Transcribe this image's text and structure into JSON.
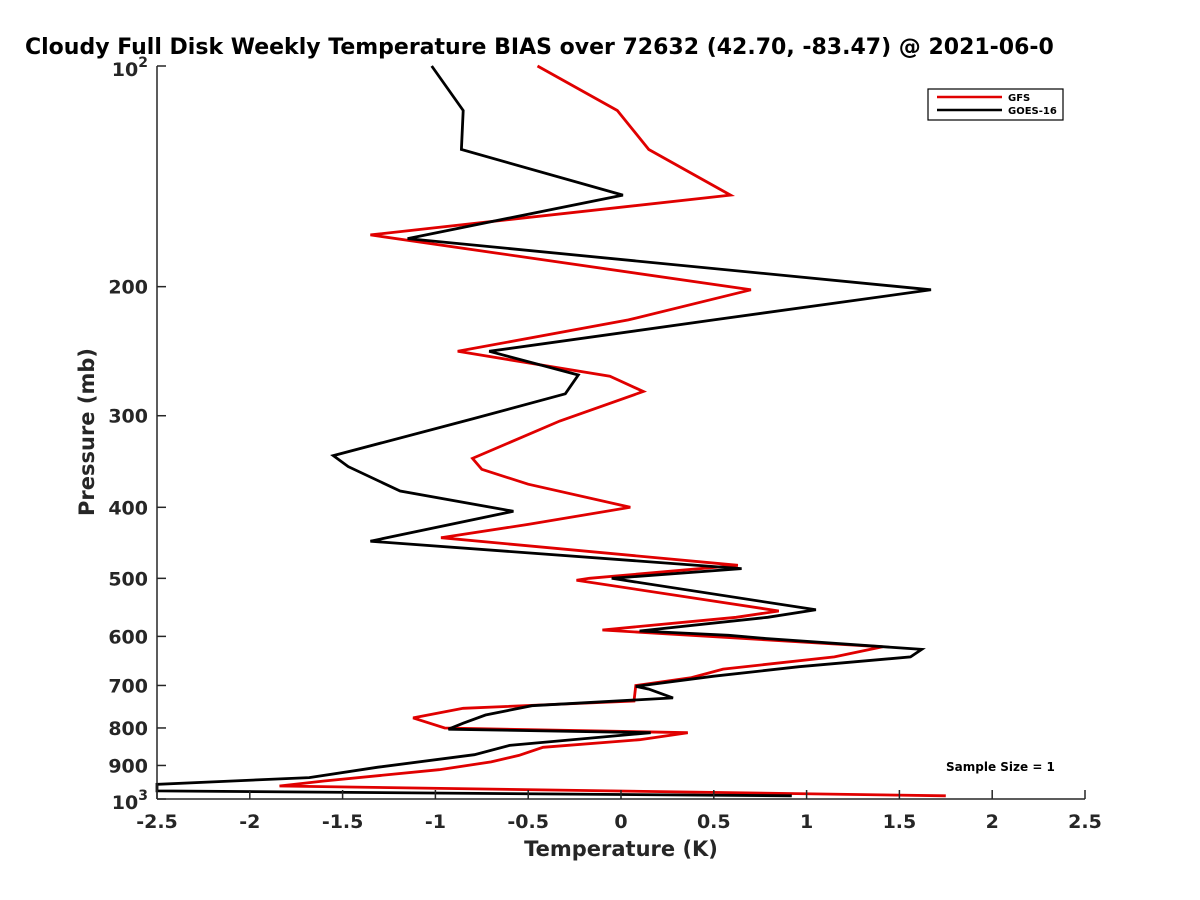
{
  "chart_data": {
    "type": "line",
    "title": "Cloudy Full Disk Weekly Temperature BIAS over 72632 (42.70, -83.47) @ 2021-06-0",
    "xlabel": "Temperature (K)",
    "ylabel": "Pressure (mb)",
    "xlim": [
      -2.5,
      2.5
    ],
    "ylim": [
      100,
      1000
    ],
    "yscale": "log",
    "yreversed": true,
    "xticks": [
      -2.5,
      -2,
      -1.5,
      -1,
      -0.5,
      0,
      0.5,
      1,
      1.5,
      2,
      2.5
    ],
    "xtick_labels": [
      "-2.5",
      "-2",
      "-1.5",
      "-1",
      "-0.5",
      "0",
      "0.5",
      "1",
      "1.5",
      "2",
      "2.5"
    ],
    "yticks": [
      200,
      300,
      400,
      500,
      600,
      700,
      800,
      900
    ],
    "ytick_labels": [
      "200",
      "300",
      "400",
      "500",
      "600",
      "700",
      "800",
      "900"
    ],
    "ytick_top": {
      "base": "10",
      "exp": "2",
      "value": 100
    },
    "ytick_bottom": {
      "base": "10",
      "exp": "3",
      "value": 1000
    },
    "grid": false,
    "legend_position": "top-right",
    "annotation": "Sample Size = 1",
    "series": [
      {
        "name": "GFS",
        "color": "#e00000",
        "points": [
          [
            -0.45,
            100
          ],
          [
            -0.02,
            115
          ],
          [
            0.15,
            130
          ],
          [
            0.59,
            150
          ],
          [
            -1.35,
            170
          ],
          [
            0.7,
            202
          ],
          [
            0.04,
            222
          ],
          [
            -0.88,
            245
          ],
          [
            -0.06,
            265
          ],
          [
            0.12,
            278
          ],
          [
            -0.33,
            305
          ],
          [
            -0.8,
            343
          ],
          [
            -0.75,
            355
          ],
          [
            -0.5,
            372
          ],
          [
            0.05,
            400
          ],
          [
            -0.5,
            422
          ],
          [
            -0.97,
            440
          ],
          [
            0.63,
            480
          ],
          [
            -0.17,
            500
          ],
          [
            -0.24,
            503
          ],
          [
            0.85,
            554
          ],
          [
            0.62,
            565
          ],
          [
            -0.1,
            588
          ],
          [
            1.41,
            620
          ],
          [
            1.15,
            640
          ],
          [
            0.55,
            665
          ],
          [
            0.38,
            683
          ],
          [
            0.08,
            700
          ],
          [
            0.07,
            735
          ],
          [
            -0.85,
            752
          ],
          [
            -1.12,
            775
          ],
          [
            -0.95,
            800
          ],
          [
            0.36,
            812
          ],
          [
            0.1,
            830
          ],
          [
            -0.42,
            850
          ],
          [
            -0.55,
            872
          ],
          [
            -0.7,
            890
          ],
          [
            -0.98,
            912
          ],
          [
            -1.6,
            945
          ],
          [
            -1.84,
            960
          ],
          [
            1.75,
            990
          ]
        ]
      },
      {
        "name": "GOES-16",
        "color": "#000000",
        "points": [
          [
            -1.02,
            100
          ],
          [
            -0.85,
            115
          ],
          [
            -0.86,
            130
          ],
          [
            0.01,
            150
          ],
          [
            -1.15,
            172
          ],
          [
            1.67,
            202
          ],
          [
            0.5,
            222
          ],
          [
            -0.71,
            245
          ],
          [
            -0.23,
            264
          ],
          [
            -0.3,
            280
          ],
          [
            -0.8,
            303
          ],
          [
            -1.55,
            340
          ],
          [
            -1.47,
            352
          ],
          [
            -1.19,
            380
          ],
          [
            -0.58,
            405
          ],
          [
            -1.35,
            445
          ],
          [
            0.65,
            485
          ],
          [
            -0.05,
            500
          ],
          [
            1.05,
            552
          ],
          [
            0.79,
            565
          ],
          [
            0.1,
            590
          ],
          [
            0.58,
            598
          ],
          [
            0.78,
            604
          ],
          [
            1.62,
            625
          ],
          [
            1.56,
            640
          ],
          [
            0.96,
            660
          ],
          [
            0.5,
            680
          ],
          [
            0.08,
            702
          ],
          [
            0.15,
            708
          ],
          [
            0.28,
            728
          ],
          [
            -0.48,
            746
          ],
          [
            -0.73,
            768
          ],
          [
            -0.85,
            788
          ],
          [
            -0.93,
            803
          ],
          [
            0.16,
            812
          ],
          [
            -0.6,
            845
          ],
          [
            -0.79,
            870
          ],
          [
            -1.31,
            905
          ],
          [
            -1.68,
            935
          ],
          [
            -2.5,
            955
          ],
          [
            -2.5,
            975
          ],
          [
            0.92,
            990
          ]
        ]
      }
    ]
  }
}
